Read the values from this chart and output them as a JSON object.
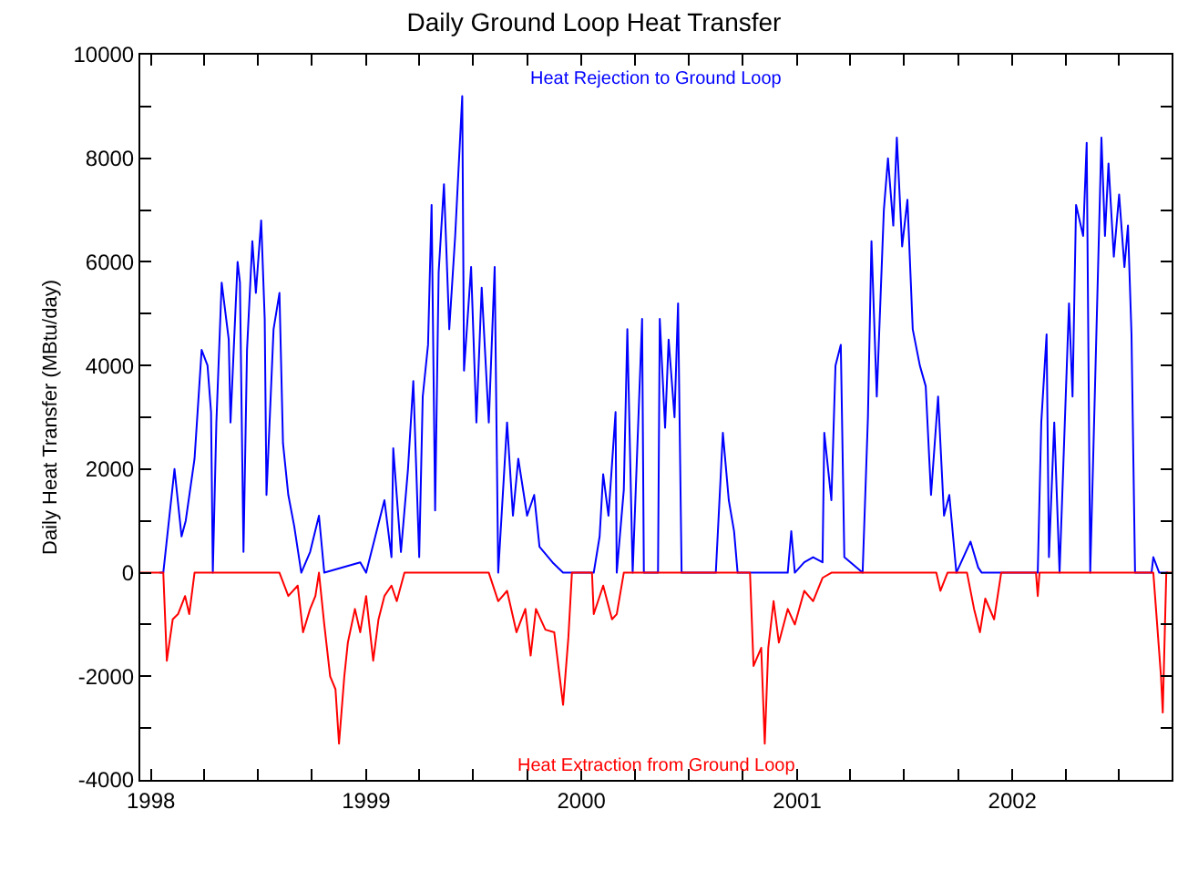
{
  "chart_data": {
    "type": "line",
    "title": "Daily Ground Loop Heat Transfer",
    "ylabel": "Daily Heat Transfer (MBtu/day)",
    "legend": false,
    "marker": "none",
    "line_style": "solid",
    "xlim": [
      "1997-12-14",
      "2002-09-28"
    ],
    "xticks": [
      {
        "value": "1998-01-01",
        "label": "1998"
      },
      {
        "value": "1998-04-01",
        "label": null
      },
      {
        "value": "1998-07-01",
        "label": null
      },
      {
        "value": "1998-10-01",
        "label": null
      },
      {
        "value": "1999-01-01",
        "label": "1999"
      },
      {
        "value": "1999-04-01",
        "label": null
      },
      {
        "value": "1999-07-01",
        "label": null
      },
      {
        "value": "1999-10-01",
        "label": null
      },
      {
        "value": "2000-01-01",
        "label": "2000"
      },
      {
        "value": "2000-04-01",
        "label": null
      },
      {
        "value": "2000-07-01",
        "label": null
      },
      {
        "value": "2000-10-01",
        "label": null
      },
      {
        "value": "2001-01-01",
        "label": "2001"
      },
      {
        "value": "2001-04-01",
        "label": null
      },
      {
        "value": "2001-07-01",
        "label": null
      },
      {
        "value": "2001-10-01",
        "label": null
      },
      {
        "value": "2002-01-01",
        "label": "2002"
      },
      {
        "value": "2002-04-01",
        "label": null
      },
      {
        "value": "2002-07-01",
        "label": null
      }
    ],
    "ylim": [
      -4000,
      10000
    ],
    "yticks": [
      -4000,
      {
        "value": -3000,
        "label": null
      },
      -2000,
      {
        "value": -1000,
        "label": null
      },
      0,
      {
        "value": 1000,
        "label": null
      },
      2000,
      {
        "value": 3000,
        "label": null
      },
      4000,
      {
        "value": 5000,
        "label": null
      },
      6000,
      {
        "value": 7000,
        "label": null
      },
      8000,
      {
        "value": 9000,
        "label": null
      },
      10000
    ],
    "series": [
      {
        "name": "Heat Rejection to Ground Loop",
        "color": "#0000ff",
        "x": [
          "1998-01-16",
          "1998-01-22",
          "1998-02-10",
          "1998-02-22",
          "1998-03-01",
          "1998-03-16",
          "1998-03-28",
          "1998-04-07",
          "1998-04-13",
          "1998-04-16",
          "1998-04-22",
          "1998-05-01",
          "1998-05-13",
          "1998-05-16",
          "1998-05-28",
          "1998-06-01",
          "1998-06-07",
          "1998-06-13",
          "1998-06-22",
          "1998-06-28",
          "1998-07-07",
          "1998-07-13",
          "1998-07-16",
          "1998-07-28",
          "1998-08-07",
          "1998-08-13",
          "1998-08-22",
          "1998-09-01",
          "1998-09-13",
          "1998-09-28",
          "1998-10-13",
          "1998-10-22",
          "1998-12-22",
          "1999-01-01",
          "1999-02-01",
          "1999-02-13",
          "1999-02-16",
          "1999-03-01",
          "1999-03-13",
          "1999-03-22",
          "1999-04-01",
          "1999-04-07",
          "1999-04-16",
          "1999-04-22",
          "1999-04-28",
          "1999-05-04",
          "1999-05-13",
          "1999-05-22",
          "1999-06-01",
          "1999-06-13",
          "1999-06-16",
          "1999-06-28",
          "1999-07-07",
          "1999-07-16",
          "1999-07-28",
          "1999-08-07",
          "1999-08-13",
          "1999-08-28",
          "1999-09-07",
          "1999-09-16",
          "1999-10-01",
          "1999-10-13",
          "1999-10-22",
          "1999-11-13",
          "1999-12-01",
          "2000-01-22",
          "2000-02-01",
          "2000-02-07",
          "2000-02-16",
          "2000-02-28",
          "2000-03-01",
          "2000-03-13",
          "2000-03-19",
          "2000-03-28",
          "2000-04-13",
          "2000-04-16",
          "2000-05-10",
          "2000-05-13",
          "2000-05-22",
          "2000-05-28",
          "2000-06-07",
          "2000-06-13",
          "2000-06-19",
          "2000-08-16",
          "2000-08-28",
          "2000-09-07",
          "2000-09-16",
          "2000-09-22",
          "2000-12-16",
          "2000-12-22",
          "2000-12-28",
          "2001-01-13",
          "2001-01-28",
          "2001-02-13",
          "2001-02-16",
          "2001-02-28",
          "2001-03-07",
          "2001-03-16",
          "2001-03-22",
          "2001-04-22",
          "2001-05-01",
          "2001-05-07",
          "2001-05-16",
          "2001-05-28",
          "2001-06-04",
          "2001-06-13",
          "2001-06-19",
          "2001-06-28",
          "2001-07-07",
          "2001-07-16",
          "2001-07-28",
          "2001-08-07",
          "2001-08-16",
          "2001-08-28",
          "2001-09-07",
          "2001-09-16",
          "2001-09-28",
          "2001-10-22",
          "2001-11-04",
          "2001-11-10",
          "2002-02-13",
          "2002-02-19",
          "2002-02-28",
          "2002-03-04",
          "2002-03-13",
          "2002-03-22",
          "2002-04-07",
          "2002-04-13",
          "2002-04-19",
          "2002-05-01",
          "2002-05-07",
          "2002-05-13",
          "2002-06-01",
          "2002-06-07",
          "2002-06-13",
          "2002-06-22",
          "2002-07-01",
          "2002-07-10",
          "2002-07-16",
          "2002-07-22",
          "2002-07-28",
          "2002-08-25",
          "2002-08-28",
          "2002-09-07",
          "2002-09-22"
        ],
        "values": [
          0,
          0,
          2000,
          700,
          1000,
          2200,
          4300,
          4000,
          3100,
          0,
          2900,
          5600,
          4500,
          2900,
          6000,
          5600,
          400,
          4300,
          6400,
          5400,
          6800,
          4900,
          1500,
          4700,
          5400,
          2500,
          1500,
          900,
          0,
          400,
          1100,
          0,
          200,
          0,
          1400,
          300,
          2400,
          400,
          2000,
          3700,
          300,
          3400,
          4400,
          7100,
          1200,
          5800,
          7500,
          4700,
          6500,
          9200,
          3900,
          5900,
          2900,
          5500,
          2900,
          5900,
          0,
          2900,
          1100,
          2200,
          1100,
          1500,
          500,
          200,
          0,
          0,
          700,
          1900,
          1100,
          3100,
          0,
          1600,
          4700,
          0,
          4900,
          0,
          0,
          4900,
          2800,
          4500,
          3000,
          5200,
          0,
          0,
          2700,
          1400,
          800,
          0,
          0,
          800,
          0,
          200,
          300,
          200,
          2700,
          1400,
          4000,
          4400,
          300,
          0,
          3000,
          6400,
          3400,
          7000,
          8000,
          6700,
          8400,
          6300,
          7200,
          4700,
          4000,
          3600,
          1500,
          3400,
          1100,
          1500,
          0,
          600,
          100,
          0,
          0,
          2900,
          4600,
          300,
          2900,
          0,
          5200,
          3400,
          7100,
          6500,
          8300,
          0,
          8400,
          6500,
          7900,
          6100,
          7300,
          5900,
          6700,
          4600,
          0,
          0,
          300,
          0,
          0
        ]
      },
      {
        "name": "Heat Extraction from Ground Loop",
        "color": "#ff0000",
        "x": [
          "1997-12-14",
          "1998-01-22",
          "1998-01-28",
          "1998-02-07",
          "1998-02-16",
          "1998-02-28",
          "1998-03-07",
          "1998-03-16",
          "1998-08-07",
          "1998-08-22",
          "1998-09-07",
          "1998-09-16",
          "1998-09-28",
          "1998-10-07",
          "1998-10-13",
          "1998-10-22",
          "1998-11-01",
          "1998-11-10",
          "1998-11-16",
          "1998-11-25",
          "1998-12-01",
          "1998-12-13",
          "1998-12-22",
          "1999-01-01",
          "1999-01-13",
          "1999-01-22",
          "1999-02-01",
          "1999-02-13",
          "1999-02-22",
          "1999-03-07",
          "1999-07-28",
          "1999-08-13",
          "1999-08-28",
          "1999-09-13",
          "1999-09-28",
          "1999-10-07",
          "1999-10-16",
          "1999-11-01",
          "1999-11-16",
          "1999-12-01",
          "1999-12-10",
          "1999-12-16",
          "2000-01-19",
          "2000-01-22",
          "2000-02-07",
          "2000-02-22",
          "2000-03-01",
          "2000-03-13",
          "2000-10-13",
          "2000-10-19",
          "2000-11-01",
          "2000-11-07",
          "2000-11-13",
          "2000-11-22",
          "2000-12-01",
          "2000-12-16",
          "2000-12-28",
          "2001-01-13",
          "2001-01-28",
          "2001-02-13",
          "2001-02-28",
          "2001-08-25",
          "2001-09-01",
          "2001-09-13",
          "2001-10-16",
          "2001-10-28",
          "2001-11-07",
          "2001-11-16",
          "2001-12-01",
          "2001-12-13",
          "2002-02-10",
          "2002-02-13",
          "2002-02-16",
          "2002-08-28",
          "2002-09-10",
          "2002-09-13",
          "2002-09-19",
          "2002-09-28"
        ],
        "values": [
          0,
          0,
          -1700,
          -900,
          -800,
          -450,
          -800,
          0,
          0,
          -450,
          -250,
          -1150,
          -700,
          -450,
          0,
          -1000,
          -2000,
          -2250,
          -3300,
          -2000,
          -1350,
          -700,
          -1150,
          -450,
          -1700,
          -900,
          -450,
          -250,
          -550,
          0,
          0,
          -550,
          -350,
          -1150,
          -700,
          -1600,
          -700,
          -1100,
          -1150,
          -2550,
          -1250,
          0,
          0,
          -800,
          -250,
          -900,
          -800,
          0,
          0,
          -1800,
          -1450,
          -3300,
          -1450,
          -550,
          -1350,
          -700,
          -1000,
          -350,
          -550,
          -100,
          0,
          0,
          -350,
          0,
          0,
          -700,
          -1150,
          -500,
          -900,
          0,
          0,
          -450,
          0,
          0,
          -2000,
          -2700,
          0,
          0
        ]
      }
    ]
  }
}
